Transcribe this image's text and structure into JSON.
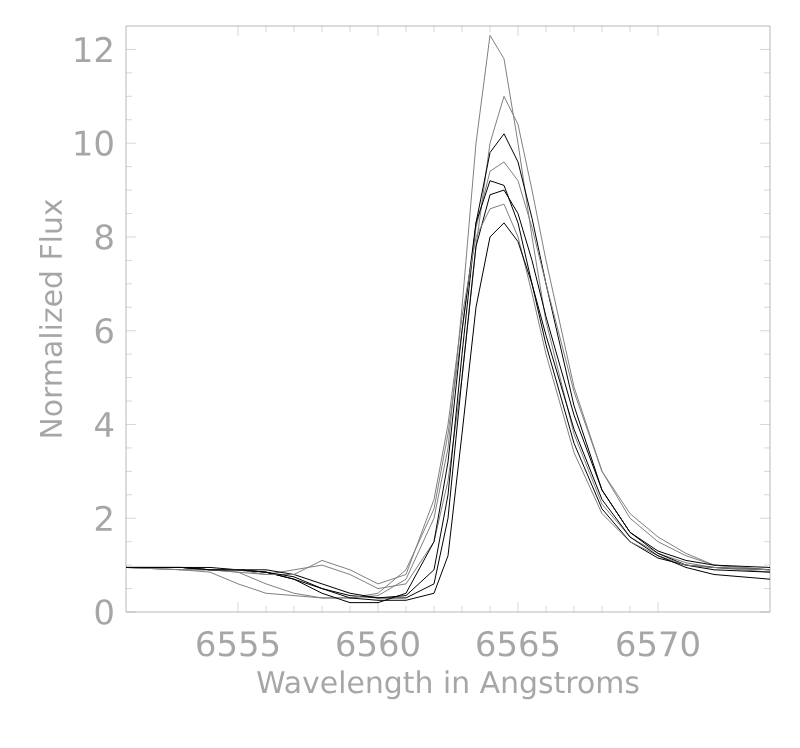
{
  "chart_data": {
    "type": "line",
    "xlabel": "Wavelength in Angstroms",
    "ylabel": "Normalized Flux",
    "x": [
      6551,
      6553,
      6554,
      6555,
      6556,
      6557,
      6558,
      6559,
      6560,
      6561,
      6562,
      6562.5,
      6563,
      6563.5,
      6564,
      6564.5,
      6565,
      6565.5,
      6566,
      6567,
      6568,
      6569,
      6570,
      6571,
      6572,
      6574
    ],
    "series": [
      {
        "color": "#808080",
        "values": [
          0.95,
          0.9,
          0.85,
          0.6,
          0.4,
          0.35,
          0.3,
          0.3,
          0.35,
          0.7,
          2.0,
          3.5,
          6.5,
          10,
          12.3,
          11.8,
          10,
          8,
          6.2,
          3.8,
          2.3,
          1.6,
          1.25,
          1.05,
          0.95,
          0.85
        ]
      },
      {
        "color": "#808080",
        "values": [
          0.95,
          0.9,
          0.9,
          0.85,
          0.8,
          0.9,
          1.0,
          0.8,
          0.5,
          0.6,
          1.5,
          2.8,
          5.0,
          7.8,
          10.0,
          11.0,
          10.4,
          9.0,
          7.5,
          4.8,
          3.0,
          2.0,
          1.5,
          1.2,
          1.0,
          0.9
        ]
      },
      {
        "color": "#000000",
        "values": [
          0.95,
          0.95,
          0.9,
          0.9,
          0.85,
          0.7,
          0.5,
          0.35,
          0.3,
          0.35,
          0.9,
          2.5,
          5.5,
          8.3,
          9.8,
          10.2,
          9.6,
          8.4,
          7.0,
          4.4,
          2.6,
          1.7,
          1.25,
          1.0,
          0.9,
          0.85
        ]
      },
      {
        "color": "#808080",
        "values": [
          0.95,
          0.95,
          0.9,
          0.85,
          0.6,
          0.4,
          0.3,
          0.3,
          0.4,
          0.9,
          2.2,
          3.8,
          6.0,
          8.2,
          9.4,
          9.6,
          9.2,
          8.2,
          7.0,
          4.7,
          3.0,
          2.1,
          1.6,
          1.25,
          1.0,
          0.9
        ]
      },
      {
        "color": "#000000",
        "values": [
          0.95,
          0.95,
          0.9,
          0.9,
          0.85,
          0.7,
          0.4,
          0.2,
          0.2,
          0.4,
          1.5,
          3.2,
          6.0,
          8.3,
          9.2,
          9.1,
          8.3,
          7.0,
          5.7,
          3.6,
          2.2,
          1.5,
          1.15,
          1.0,
          0.95,
          0.9
        ]
      },
      {
        "color": "#000000",
        "values": [
          0.95,
          0.95,
          0.95,
          0.9,
          0.9,
          0.8,
          0.6,
          0.4,
          0.3,
          0.3,
          0.6,
          2.0,
          5.0,
          7.8,
          8.9,
          9.0,
          8.5,
          7.5,
          6.3,
          4.2,
          2.6,
          1.7,
          1.3,
          1.1,
          1.0,
          0.95
        ]
      },
      {
        "color": "#808080",
        "values": [
          0.95,
          0.9,
          0.9,
          0.9,
          0.8,
          0.8,
          1.1,
          0.9,
          0.6,
          0.8,
          2.4,
          4.0,
          6.3,
          8.0,
          8.6,
          8.7,
          8.0,
          6.8,
          5.5,
          3.4,
          2.1,
          1.5,
          1.2,
          1.0,
          0.95,
          0.9
        ]
      },
      {
        "color": "#000000",
        "values": [
          0.95,
          0.95,
          0.9,
          0.9,
          0.85,
          0.75,
          0.5,
          0.3,
          0.25,
          0.25,
          0.4,
          1.2,
          3.8,
          6.5,
          8.0,
          8.3,
          7.9,
          7.0,
          5.9,
          3.9,
          2.4,
          1.6,
          1.2,
          0.95,
          0.8,
          0.7
        ]
      }
    ],
    "xlim": [
      6551,
      6574
    ],
    "ylim": [
      0,
      12.5
    ],
    "xticks": [
      6555,
      6560,
      6565,
      6570
    ],
    "yticks": [
      0,
      2,
      4,
      6,
      8,
      10,
      12
    ],
    "marker": "none",
    "line_style": "solid"
  }
}
